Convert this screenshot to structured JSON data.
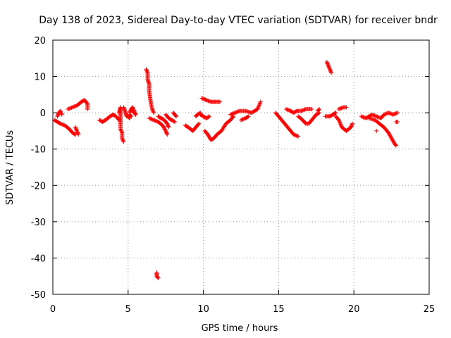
{
  "chart_data": {
    "type": "scatter",
    "title": "Day 138 of 2023, Sidereal Day-to-day VTEC variation (SDTVAR) for receiver bndr",
    "xlabel": "GPS time / hours",
    "ylabel": "SDTVAR / TECUs",
    "xlim": [
      0,
      25
    ],
    "ylim": [
      -50,
      20
    ],
    "x_ticks": [
      "0",
      "5",
      "10",
      "15",
      "20",
      "25"
    ],
    "y_ticks": [
      "20",
      "10",
      "0",
      "-10",
      "-20",
      "-30",
      "-40",
      "-50"
    ],
    "grid": true,
    "marker": "+",
    "color": "#ff0000",
    "tracks": [
      [
        [
          0.1,
          -2
        ],
        [
          0.3,
          -2.5
        ],
        [
          0.5,
          -3
        ],
        [
          0.8,
          -3.5
        ],
        [
          1.1,
          -4.5
        ],
        [
          1.3,
          -5.5
        ],
        [
          1.5,
          -6
        ]
      ],
      [
        [
          0.3,
          -1
        ],
        [
          0.4,
          0
        ],
        [
          0.5,
          0.5
        ],
        [
          0.6,
          -0.5
        ]
      ],
      [
        [
          1.0,
          1
        ],
        [
          1.3,
          1.5
        ],
        [
          1.6,
          2
        ],
        [
          1.9,
          3
        ],
        [
          2.1,
          3.5
        ],
        [
          2.3,
          2.5
        ],
        [
          2.3,
          1
        ]
      ],
      [
        [
          1.5,
          -4
        ],
        [
          1.6,
          -5
        ],
        [
          1.7,
          -6
        ]
      ],
      [
        [
          3.1,
          -2
        ],
        [
          3.3,
          -2.5
        ],
        [
          3.5,
          -2
        ],
        [
          3.8,
          -1
        ],
        [
          4.0,
          -0.5
        ],
        [
          4.2,
          -1
        ],
        [
          4.4,
          -2
        ]
      ],
      [
        [
          4.4,
          0
        ],
        [
          4.5,
          1.5
        ],
        [
          4.5,
          -1
        ],
        [
          4.5,
          -3
        ],
        [
          4.5,
          -4.5
        ],
        [
          4.6,
          -5.5
        ],
        [
          4.6,
          -7
        ],
        [
          4.7,
          -8
        ]
      ],
      [
        [
          4.7,
          1.5
        ],
        [
          4.8,
          0.5
        ],
        [
          4.9,
          -1
        ],
        [
          5.0,
          -1
        ],
        [
          5.1,
          -1.5
        ],
        [
          5.1,
          -0.5
        ],
        [
          5.2,
          -1
        ]
      ],
      [
        [
          5.1,
          0
        ],
        [
          5.2,
          1
        ],
        [
          5.3,
          1.5
        ],
        [
          5.4,
          0.5
        ],
        [
          5.5,
          -0.5
        ],
        [
          5.3,
          0.5
        ]
      ],
      [
        [
          6.2,
          12
        ],
        [
          6.3,
          11
        ],
        [
          6.3,
          9
        ],
        [
          6.4,
          8
        ],
        [
          6.4,
          6
        ],
        [
          6.5,
          3
        ],
        [
          6.6,
          1
        ],
        [
          6.7,
          0
        ]
      ],
      [
        [
          6.4,
          -1.5
        ],
        [
          6.7,
          -2
        ],
        [
          7.0,
          -2.5
        ],
        [
          7.3,
          -3.5
        ],
        [
          7.5,
          -5
        ],
        [
          7.6,
          -6
        ]
      ],
      [
        [
          7.0,
          -1
        ],
        [
          7.2,
          -1.5
        ],
        [
          7.4,
          -2
        ],
        [
          7.6,
          -3
        ],
        [
          7.7,
          -4
        ]
      ],
      [
        [
          7.5,
          -0.5
        ],
        [
          7.7,
          -1.5
        ],
        [
          7.9,
          -2
        ],
        [
          8.1,
          -2.5
        ]
      ],
      [
        [
          8.0,
          0
        ],
        [
          8.1,
          -0.5
        ],
        [
          8.2,
          -1
        ]
      ],
      [
        [
          6.9,
          -44
        ],
        [
          6.9,
          -45
        ],
        [
          7.0,
          -45.5
        ]
      ],
      [
        [
          8.8,
          -3.5
        ],
        [
          9.0,
          -4
        ],
        [
          9.3,
          -5
        ],
        [
          9.5,
          -4
        ],
        [
          9.7,
          -3
        ]
      ],
      [
        [
          9.5,
          -1
        ],
        [
          9.6,
          -0.5
        ],
        [
          9.8,
          0
        ]
      ],
      [
        [
          9.8,
          -0.5
        ],
        [
          10.0,
          -1
        ],
        [
          10.2,
          -1.5
        ],
        [
          10.4,
          -1
        ]
      ],
      [
        [
          9.9,
          4
        ],
        [
          10.2,
          3.5
        ],
        [
          10.5,
          3
        ],
        [
          10.8,
          3
        ],
        [
          11.1,
          3
        ]
      ],
      [
        [
          10.1,
          -5
        ],
        [
          10.3,
          -6
        ],
        [
          10.5,
          -7.5
        ],
        [
          10.7,
          -7
        ],
        [
          10.9,
          -6
        ],
        [
          11.2,
          -5
        ],
        [
          11.5,
          -3
        ],
        [
          11.8,
          -2
        ],
        [
          12.0,
          -1
        ]
      ],
      [
        [
          11.8,
          -0.5
        ],
        [
          12.1,
          0
        ],
        [
          12.4,
          0.5
        ],
        [
          12.8,
          0.5
        ],
        [
          13.2,
          0
        ]
      ],
      [
        [
          12.5,
          -2
        ],
        [
          12.8,
          -1.5
        ],
        [
          13.0,
          -1
        ]
      ],
      [
        [
          13.2,
          0
        ],
        [
          13.4,
          0.5
        ],
        [
          13.6,
          1
        ],
        [
          13.8,
          3
        ]
      ],
      [
        [
          14.8,
          0
        ],
        [
          15.1,
          -1.5
        ],
        [
          15.4,
          -3
        ],
        [
          15.7,
          -4.5
        ],
        [
          16.0,
          -6
        ],
        [
          16.3,
          -6.5
        ]
      ],
      [
        [
          15.5,
          1
        ],
        [
          15.8,
          0.5
        ],
        [
          16.0,
          0
        ],
        [
          16.2,
          0.5
        ],
        [
          16.5,
          0.5
        ],
        [
          16.8,
          1
        ],
        [
          17.2,
          1
        ]
      ],
      [
        [
          16.3,
          -1
        ],
        [
          16.6,
          -2
        ],
        [
          16.8,
          -3
        ],
        [
          17.0,
          -3
        ],
        [
          17.3,
          -1.5
        ],
        [
          17.5,
          -0.5
        ],
        [
          17.7,
          0
        ]
      ],
      [
        [
          17.6,
          0.5
        ],
        [
          17.7,
          1
        ]
      ],
      [
        [
          18.2,
          14
        ],
        [
          18.3,
          13
        ],
        [
          18.4,
          12
        ],
        [
          18.5,
          11
        ]
      ],
      [
        [
          18.1,
          -1
        ],
        [
          18.4,
          -1
        ],
        [
          18.6,
          -0.5
        ],
        [
          18.8,
          0
        ]
      ],
      [
        [
          18.8,
          -1
        ],
        [
          19.0,
          -2
        ],
        [
          19.2,
          -4
        ],
        [
          19.5,
          -5
        ],
        [
          19.8,
          -4
        ],
        [
          19.9,
          -3
        ]
      ],
      [
        [
          19.0,
          1
        ],
        [
          19.3,
          1.5
        ],
        [
          19.5,
          1.5
        ]
      ],
      [
        [
          20.5,
          -1
        ],
        [
          20.8,
          -1.5
        ],
        [
          21.0,
          -1
        ],
        [
          21.2,
          -0.5
        ],
        [
          21.5,
          -1
        ],
        [
          21.8,
          -1.5
        ],
        [
          22.0,
          -0.5
        ],
        [
          22.3,
          0
        ],
        [
          22.6,
          -0.5
        ],
        [
          22.9,
          0
        ]
      ],
      [
        [
          21.0,
          -1.5
        ],
        [
          21.4,
          -2
        ],
        [
          21.7,
          -3
        ],
        [
          22.0,
          -4
        ],
        [
          22.3,
          -5.5
        ],
        [
          22.5,
          -7
        ],
        [
          22.7,
          -8.5
        ],
        [
          22.8,
          -9
        ]
      ],
      [
        [
          21.5,
          -5
        ]
      ],
      [
        [
          22.8,
          -2.5
        ],
        [
          22.9,
          -2.5
        ]
      ]
    ]
  }
}
